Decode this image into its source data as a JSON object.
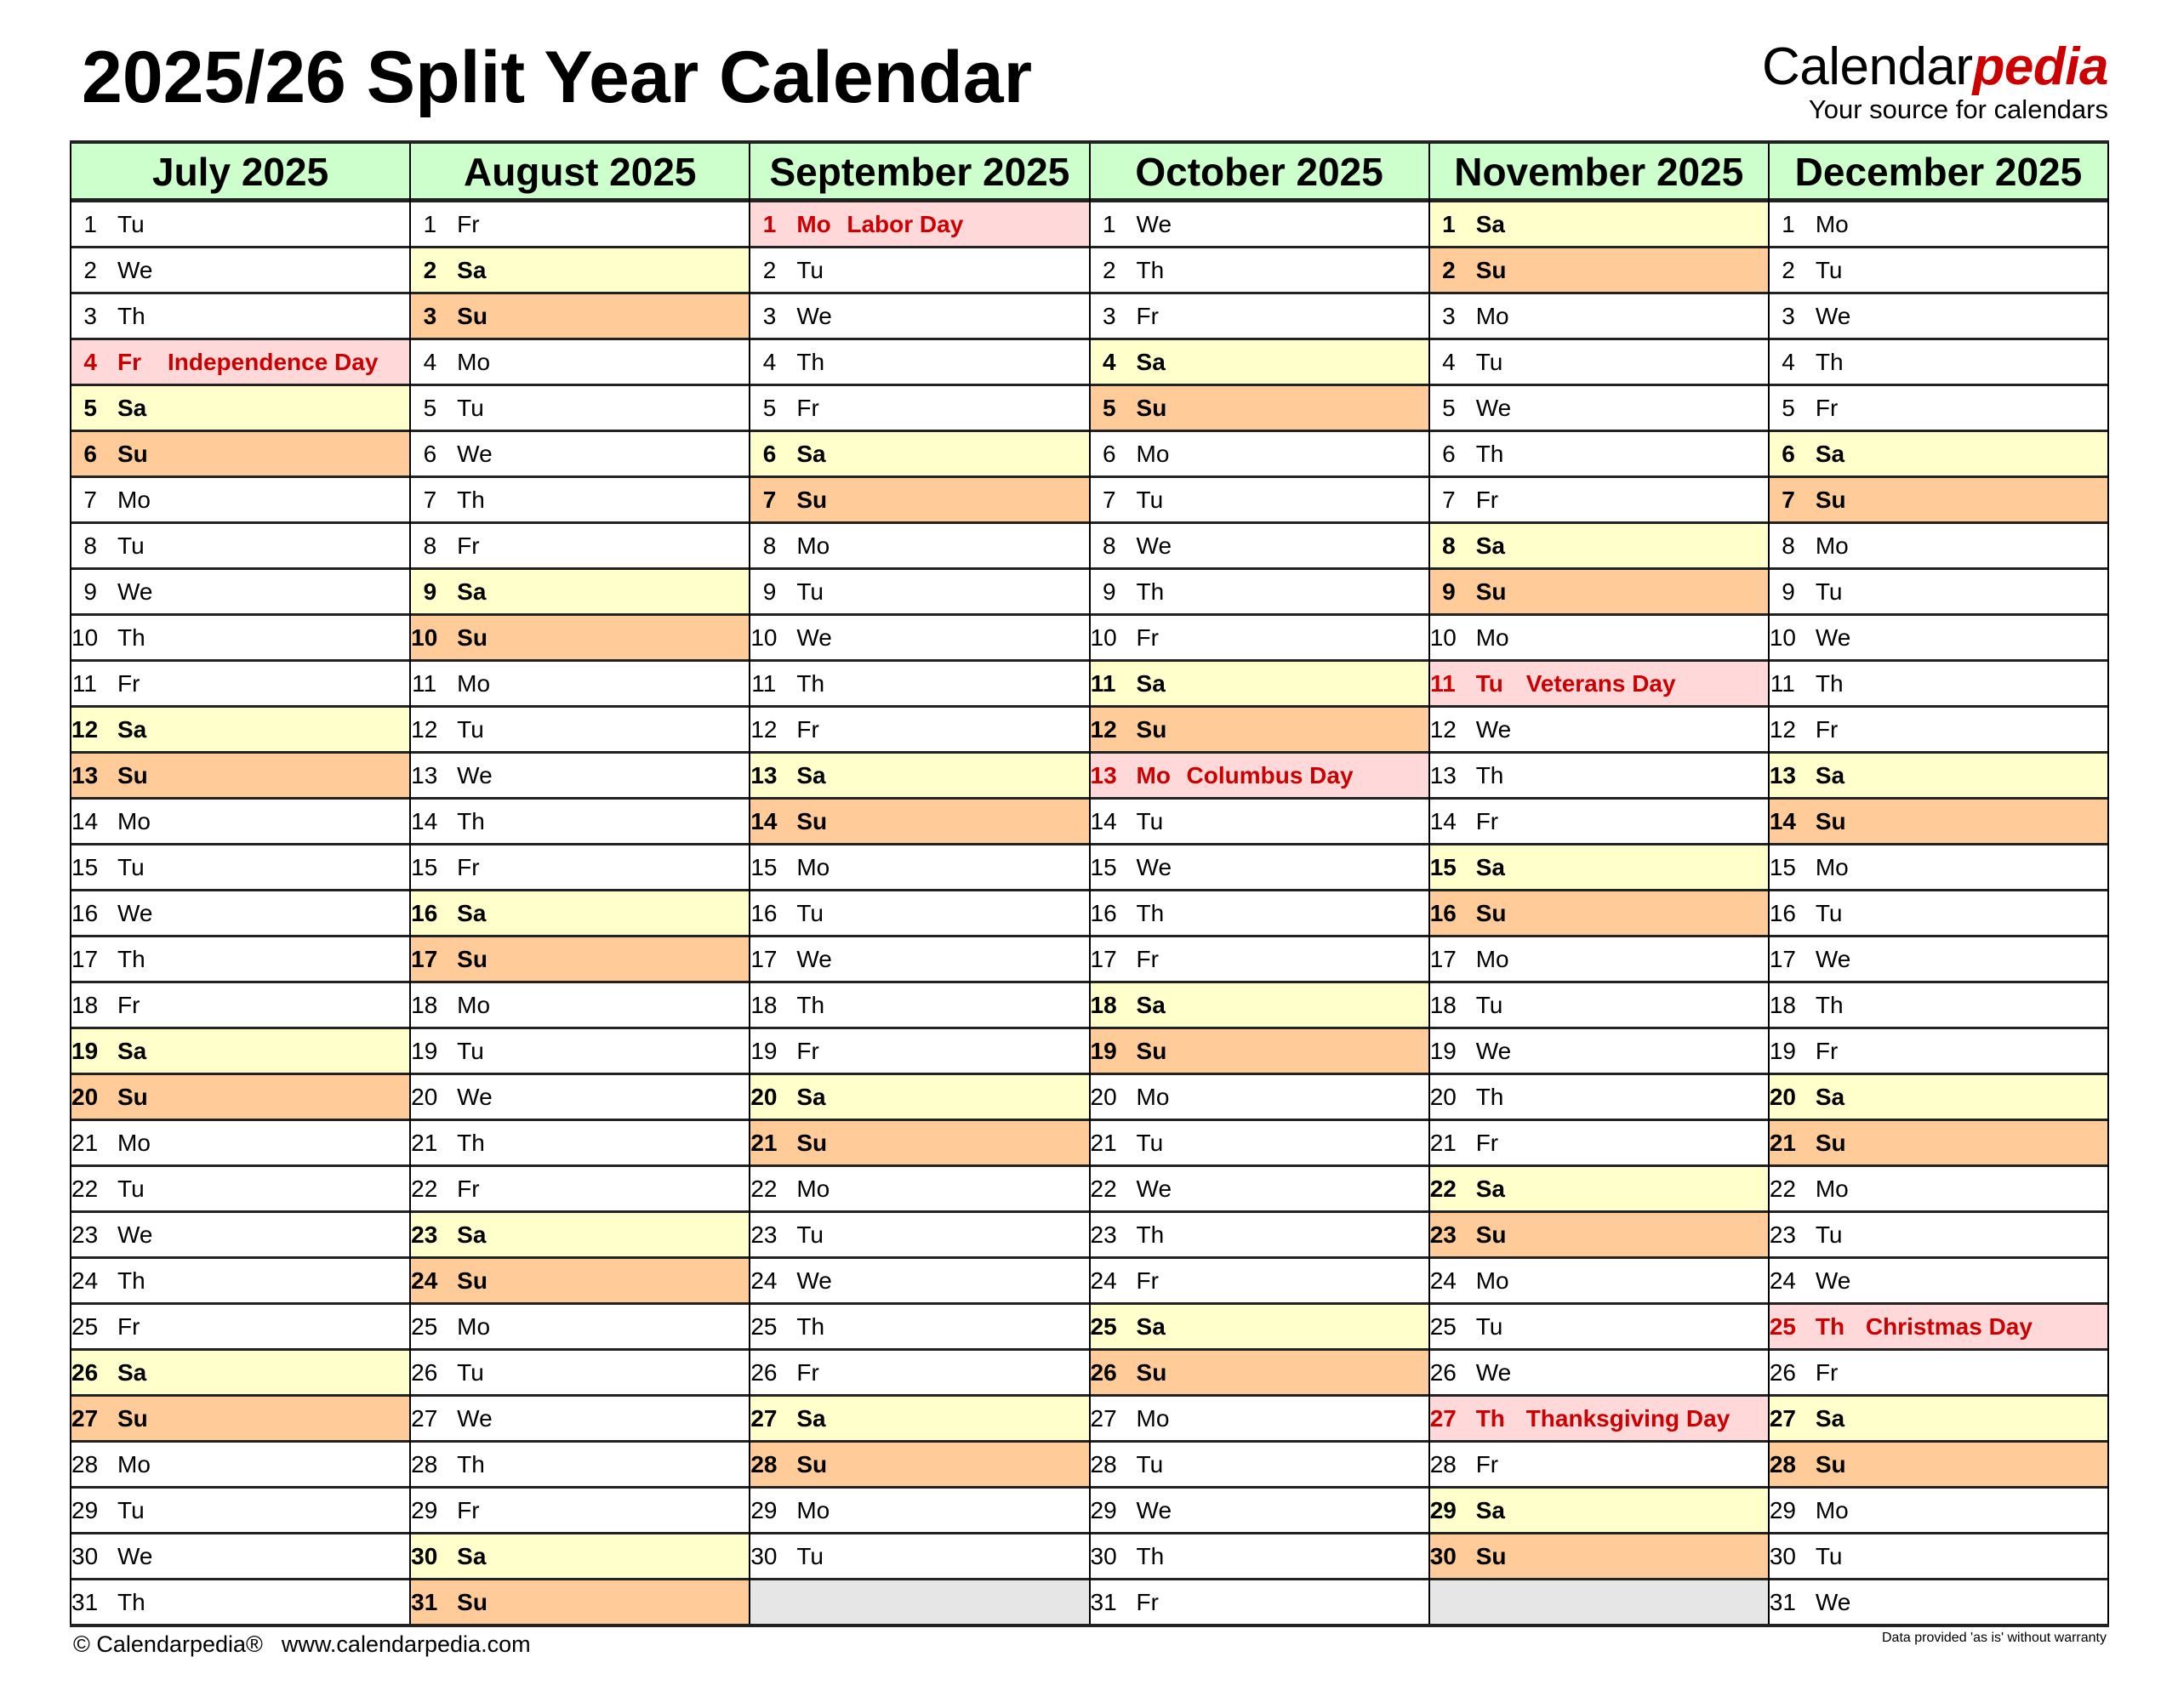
{
  "title": "2025/26 Split Year Calendar",
  "logo": {
    "main": "Calendar",
    "accent": "pedia",
    "tagline": "Your source for calendars"
  },
  "colors": {
    "header": "#ccffcc",
    "saturday": "#ffffcc",
    "sunday": "#ffcc99",
    "holiday_bg": "#ffd9d9",
    "holiday_text": "#cc0000",
    "empty": "#e6e6e6"
  },
  "months": [
    {
      "name": "July 2025",
      "days": [
        [
          "1",
          "Tu"
        ],
        [
          "2",
          "We"
        ],
        [
          "3",
          "Th"
        ],
        [
          "4",
          "Fr",
          "Independence Day"
        ],
        [
          "5",
          "Sa"
        ],
        [
          "6",
          "Su"
        ],
        [
          "7",
          "Mo"
        ],
        [
          "8",
          "Tu"
        ],
        [
          "9",
          "We"
        ],
        [
          "10",
          "Th"
        ],
        [
          "11",
          "Fr"
        ],
        [
          "12",
          "Sa"
        ],
        [
          "13",
          "Su"
        ],
        [
          "14",
          "Mo"
        ],
        [
          "15",
          "Tu"
        ],
        [
          "16",
          "We"
        ],
        [
          "17",
          "Th"
        ],
        [
          "18",
          "Fr"
        ],
        [
          "19",
          "Sa"
        ],
        [
          "20",
          "Su"
        ],
        [
          "21",
          "Mo"
        ],
        [
          "22",
          "Tu"
        ],
        [
          "23",
          "We"
        ],
        [
          "24",
          "Th"
        ],
        [
          "25",
          "Fr"
        ],
        [
          "26",
          "Sa"
        ],
        [
          "27",
          "Su"
        ],
        [
          "28",
          "Mo"
        ],
        [
          "29",
          "Tu"
        ],
        [
          "30",
          "We"
        ],
        [
          "31",
          "Th"
        ]
      ]
    },
    {
      "name": "August 2025",
      "days": [
        [
          "1",
          "Fr"
        ],
        [
          "2",
          "Sa"
        ],
        [
          "3",
          "Su"
        ],
        [
          "4",
          "Mo"
        ],
        [
          "5",
          "Tu"
        ],
        [
          "6",
          "We"
        ],
        [
          "7",
          "Th"
        ],
        [
          "8",
          "Fr"
        ],
        [
          "9",
          "Sa"
        ],
        [
          "10",
          "Su"
        ],
        [
          "11",
          "Mo"
        ],
        [
          "12",
          "Tu"
        ],
        [
          "13",
          "We"
        ],
        [
          "14",
          "Th"
        ],
        [
          "15",
          "Fr"
        ],
        [
          "16",
          "Sa"
        ],
        [
          "17",
          "Su"
        ],
        [
          "18",
          "Mo"
        ],
        [
          "19",
          "Tu"
        ],
        [
          "20",
          "We"
        ],
        [
          "21",
          "Th"
        ],
        [
          "22",
          "Fr"
        ],
        [
          "23",
          "Sa"
        ],
        [
          "24",
          "Su"
        ],
        [
          "25",
          "Mo"
        ],
        [
          "26",
          "Tu"
        ],
        [
          "27",
          "We"
        ],
        [
          "28",
          "Th"
        ],
        [
          "29",
          "Fr"
        ],
        [
          "30",
          "Sa"
        ],
        [
          "31",
          "Su"
        ]
      ]
    },
    {
      "name": "September 2025",
      "days": [
        [
          "1",
          "Mo",
          "Labor Day"
        ],
        [
          "2",
          "Tu"
        ],
        [
          "3",
          "We"
        ],
        [
          "4",
          "Th"
        ],
        [
          "5",
          "Fr"
        ],
        [
          "6",
          "Sa"
        ],
        [
          "7",
          "Su"
        ],
        [
          "8",
          "Mo"
        ],
        [
          "9",
          "Tu"
        ],
        [
          "10",
          "We"
        ],
        [
          "11",
          "Th"
        ],
        [
          "12",
          "Fr"
        ],
        [
          "13",
          "Sa"
        ],
        [
          "14",
          "Su"
        ],
        [
          "15",
          "Mo"
        ],
        [
          "16",
          "Tu"
        ],
        [
          "17",
          "We"
        ],
        [
          "18",
          "Th"
        ],
        [
          "19",
          "Fr"
        ],
        [
          "20",
          "Sa"
        ],
        [
          "21",
          "Su"
        ],
        [
          "22",
          "Mo"
        ],
        [
          "23",
          "Tu"
        ],
        [
          "24",
          "We"
        ],
        [
          "25",
          "Th"
        ],
        [
          "26",
          "Fr"
        ],
        [
          "27",
          "Sa"
        ],
        [
          "28",
          "Su"
        ],
        [
          "29",
          "Mo"
        ],
        [
          "30",
          "Tu"
        ]
      ]
    },
    {
      "name": "October 2025",
      "days": [
        [
          "1",
          "We"
        ],
        [
          "2",
          "Th"
        ],
        [
          "3",
          "Fr"
        ],
        [
          "4",
          "Sa"
        ],
        [
          "5",
          "Su"
        ],
        [
          "6",
          "Mo"
        ],
        [
          "7",
          "Tu"
        ],
        [
          "8",
          "We"
        ],
        [
          "9",
          "Th"
        ],
        [
          "10",
          "Fr"
        ],
        [
          "11",
          "Sa"
        ],
        [
          "12",
          "Su"
        ],
        [
          "13",
          "Mo",
          "Columbus Day"
        ],
        [
          "14",
          "Tu"
        ],
        [
          "15",
          "We"
        ],
        [
          "16",
          "Th"
        ],
        [
          "17",
          "Fr"
        ],
        [
          "18",
          "Sa"
        ],
        [
          "19",
          "Su"
        ],
        [
          "20",
          "Mo"
        ],
        [
          "21",
          "Tu"
        ],
        [
          "22",
          "We"
        ],
        [
          "23",
          "Th"
        ],
        [
          "24",
          "Fr"
        ],
        [
          "25",
          "Sa"
        ],
        [
          "26",
          "Su"
        ],
        [
          "27",
          "Mo"
        ],
        [
          "28",
          "Tu"
        ],
        [
          "29",
          "We"
        ],
        [
          "30",
          "Th"
        ],
        [
          "31",
          "Fr"
        ]
      ]
    },
    {
      "name": "November 2025",
      "days": [
        [
          "1",
          "Sa"
        ],
        [
          "2",
          "Su"
        ],
        [
          "3",
          "Mo"
        ],
        [
          "4",
          "Tu"
        ],
        [
          "5",
          "We"
        ],
        [
          "6",
          "Th"
        ],
        [
          "7",
          "Fr"
        ],
        [
          "8",
          "Sa"
        ],
        [
          "9",
          "Su"
        ],
        [
          "10",
          "Mo"
        ],
        [
          "11",
          "Tu",
          "Veterans Day"
        ],
        [
          "12",
          "We"
        ],
        [
          "13",
          "Th"
        ],
        [
          "14",
          "Fr"
        ],
        [
          "15",
          "Sa"
        ],
        [
          "16",
          "Su"
        ],
        [
          "17",
          "Mo"
        ],
        [
          "18",
          "Tu"
        ],
        [
          "19",
          "We"
        ],
        [
          "20",
          "Th"
        ],
        [
          "21",
          "Fr"
        ],
        [
          "22",
          "Sa"
        ],
        [
          "23",
          "Su"
        ],
        [
          "24",
          "Mo"
        ],
        [
          "25",
          "Tu"
        ],
        [
          "26",
          "We"
        ],
        [
          "27",
          "Th",
          "Thanksgiving Day"
        ],
        [
          "28",
          "Fr"
        ],
        [
          "29",
          "Sa"
        ],
        [
          "30",
          "Su"
        ]
      ]
    },
    {
      "name": "December 2025",
      "days": [
        [
          "1",
          "Mo"
        ],
        [
          "2",
          "Tu"
        ],
        [
          "3",
          "We"
        ],
        [
          "4",
          "Th"
        ],
        [
          "5",
          "Fr"
        ],
        [
          "6",
          "Sa"
        ],
        [
          "7",
          "Su"
        ],
        [
          "8",
          "Mo"
        ],
        [
          "9",
          "Tu"
        ],
        [
          "10",
          "We"
        ],
        [
          "11",
          "Th"
        ],
        [
          "12",
          "Fr"
        ],
        [
          "13",
          "Sa"
        ],
        [
          "14",
          "Su"
        ],
        [
          "15",
          "Mo"
        ],
        [
          "16",
          "Tu"
        ],
        [
          "17",
          "We"
        ],
        [
          "18",
          "Th"
        ],
        [
          "19",
          "Fr"
        ],
        [
          "20",
          "Sa"
        ],
        [
          "21",
          "Su"
        ],
        [
          "22",
          "Mo"
        ],
        [
          "23",
          "Tu"
        ],
        [
          "24",
          "We"
        ],
        [
          "25",
          "Th",
          "Christmas Day"
        ],
        [
          "26",
          "Fr"
        ],
        [
          "27",
          "Sa"
        ],
        [
          "28",
          "Su"
        ],
        [
          "29",
          "Mo"
        ],
        [
          "30",
          "Tu"
        ],
        [
          "31",
          "We"
        ]
      ]
    }
  ],
  "footer": {
    "copyright": "© Calendarpedia®",
    "url": "www.calendarpedia.com",
    "disclaimer": "Data provided 'as is' without warranty"
  }
}
